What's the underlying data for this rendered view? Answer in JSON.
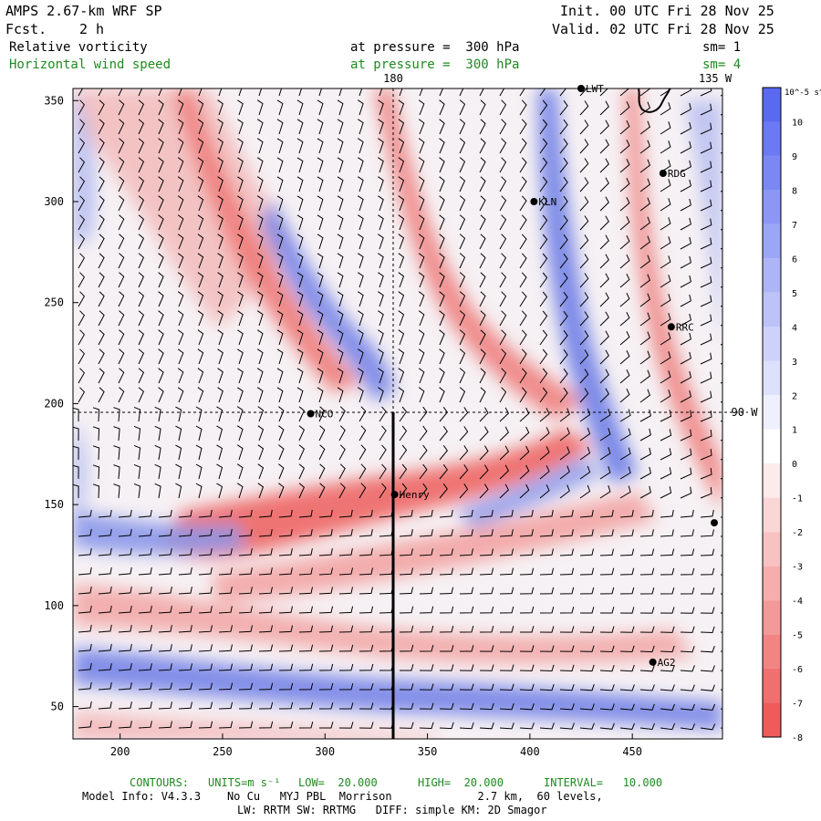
{
  "header": {
    "model_title": "AMPS 2.67-km WRF SP",
    "forecast_label": "Fcst.",
    "forecast_value": "2 h",
    "init": "Init. 00 UTC Fri 28 Nov 25",
    "valid": "Valid. 02 UTC Fri 28 Nov 25"
  },
  "fields": [
    {
      "name": "Relative vorticity",
      "level": "at pressure =  300 hPa",
      "smooth": "sm= 1",
      "color": "#000000"
    },
    {
      "name": "Horizontal wind speed",
      "level": "at pressure =  300 hPa",
      "smooth": "sm= 4",
      "color": "#1f8a1f"
    }
  ],
  "map_labels": {
    "lon_180": "180",
    "lon_135w": "135 W",
    "lon_90w": "90 W"
  },
  "stations": [
    {
      "id": "LWT",
      "x": 425,
      "y": 356
    },
    {
      "id": "RDG",
      "x": 465,
      "y": 314
    },
    {
      "id": "KLN",
      "x": 402,
      "y": 300
    },
    {
      "id": "RRC",
      "x": 469,
      "y": 238
    },
    {
      "id": "NCO",
      "x": 293,
      "y": 195
    },
    {
      "id": "Henry",
      "x": 334,
      "y": 155
    },
    {
      "id": "",
      "x": 490,
      "y": 141
    },
    {
      "id": "AG2",
      "x": 460,
      "y": 72
    }
  ],
  "chart_data": {
    "type": "heatmap",
    "title": "Relative vorticity and horizontal wind speed at 300 hPa",
    "xlim": [
      177,
      494
    ],
    "ylim": [
      34,
      356
    ],
    "x_ticks": [
      200,
      250,
      300,
      350,
      400,
      450
    ],
    "y_ticks": [
      50,
      100,
      150,
      200,
      250,
      300,
      350
    ],
    "colorbar": {
      "units": "10^-5 s^-1",
      "levels": [
        10,
        9,
        8,
        7,
        6,
        5,
        4,
        3,
        2,
        1,
        0,
        -1,
        -2,
        -3,
        -4,
        -5,
        -6,
        -7,
        -8
      ],
      "positive_color": "#5a6ae0",
      "negative_color": "#ee5b5b",
      "zero_color": "#ffffff"
    },
    "cross_section_line": {
      "x": 334,
      "y_start": 34,
      "y_end": 195
    }
  },
  "footer": {
    "contours_label": "CONTOURS:",
    "units": "UNITS=m s⁻¹",
    "low": "LOW=  20.000",
    "high": "HIGH=  20.000",
    "interval": "INTERVAL=   10.000",
    "model_info": "Model Info: V4.3.3    No Cu   MYJ PBL  Morrison             2.7 km,  60 levels,",
    "physics": "LW: RRTM SW: RRTMG   DIFF: simple KM: 2D Smagor"
  }
}
